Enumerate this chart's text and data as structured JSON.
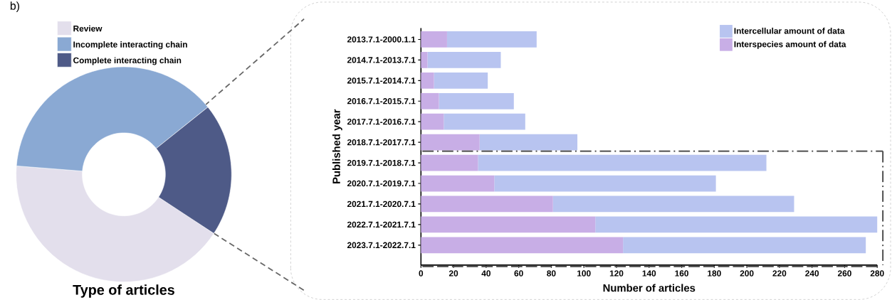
{
  "chart_data": [
    {
      "type": "donut",
      "title": "Type of articles",
      "annotations": [
        "b)"
      ],
      "categories": [
        "Review",
        "Incomplete interacting chain",
        "Complete interacting chain"
      ],
      "values": [
        42,
        38,
        20
      ],
      "colors": [
        "#e3dfec",
        "#8aa9d3",
        "#4e5a87"
      ],
      "legend": "top left"
    },
    {
      "type": "bar",
      "orientation": "horizontal",
      "xlabel": "Number of articles",
      "ylabel": "Published year",
      "categories": [
        "2013.7.1-2000.1.1",
        "2014.7.1-2013.7.1",
        "2015.7.1-2014.7.1",
        "2016.7.1-2015.7.1",
        "2017.7.1-2016.7.1",
        "2018.7.1-2017.7.1",
        "2019.7.1-2018.7.1",
        "2020.7.1-2019.7.1",
        "2021.7.1-2020.7.1",
        "2022.7.1-2021.7.1",
        "2023.7.1-2022.7.1"
      ],
      "stacked": true,
      "series": [
        {
          "name": "Interspecies amount of data",
          "color": "#c8aee6",
          "values": [
            16,
            4,
            8,
            11,
            14,
            36,
            35,
            45,
            81,
            107,
            124
          ]
        },
        {
          "name": "Intercellular amount of data",
          "color": "#b8c4f0",
          "values": [
            55,
            45,
            33,
            46,
            50,
            60,
            177,
            136,
            148,
            173,
            149
          ]
        }
      ],
      "xlim": [
        0,
        280
      ],
      "xticks": [
        0,
        20,
        40,
        60,
        80,
        100,
        120,
        140,
        160,
        180,
        200,
        220,
        240,
        260,
        280
      ],
      "legend": "top right"
    }
  ]
}
